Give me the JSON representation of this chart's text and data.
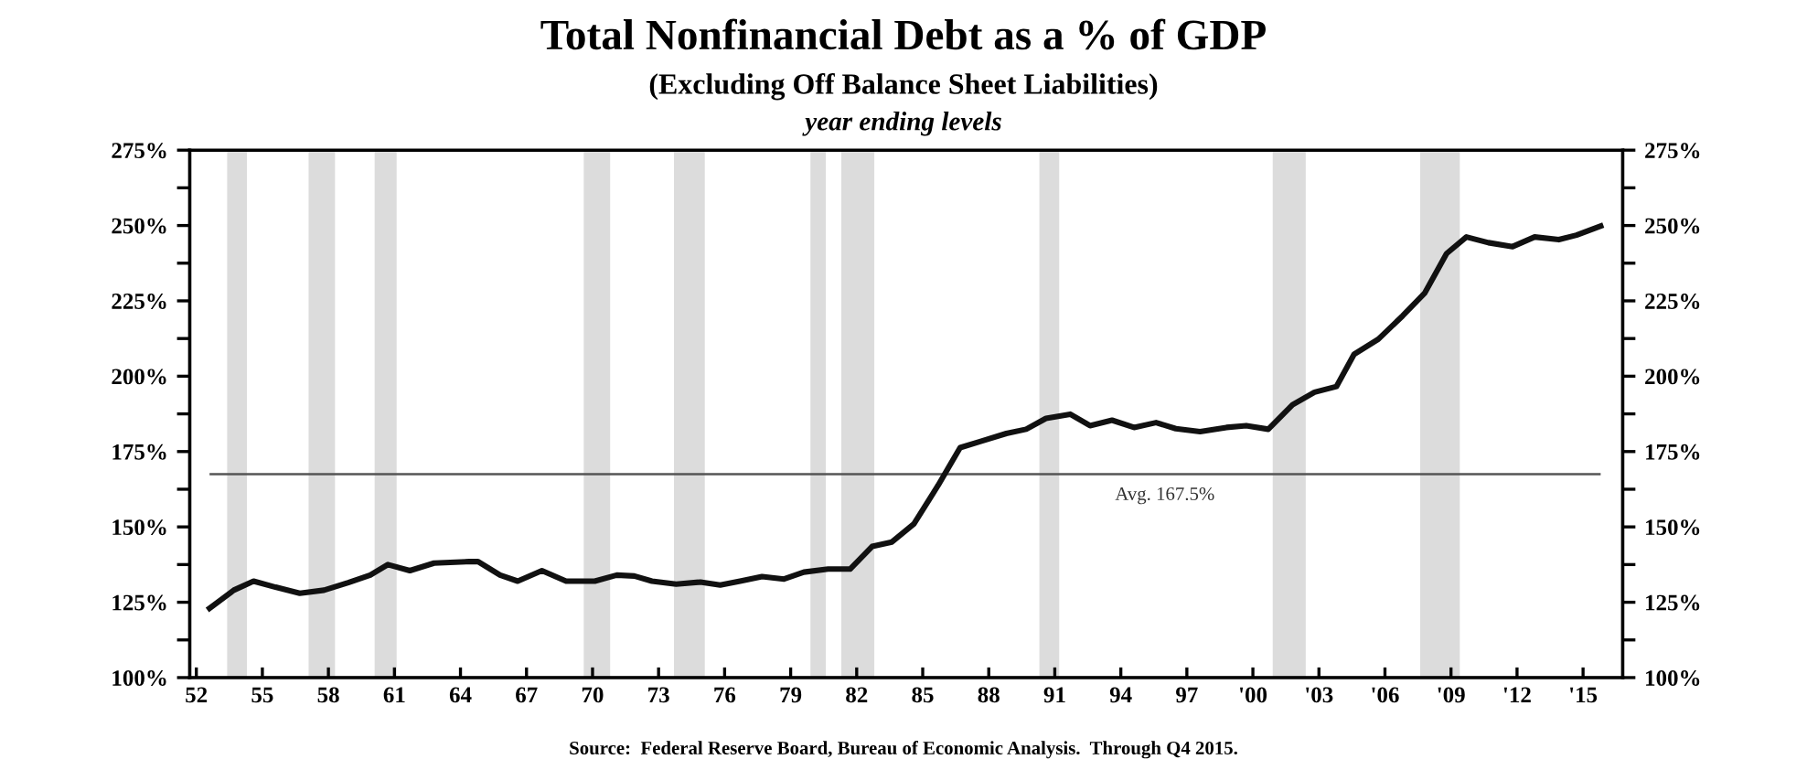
{
  "chart_data": {
    "type": "line",
    "title": "Total Nonfinancial Debt as a % of GDP",
    "subtitle": "(Excluding Off Balance Sheet Liabilities)",
    "annotations": [
      "year ending levels",
      "Source:  Federal Reserve Board, Bureau of Economic Analysis.  Through Q4 2015."
    ],
    "series": [
      {
        "color": "#111111",
        "x": [
          1952.6,
          1953.7,
          1954.6,
          1955.6,
          1956.7,
          1957.8,
          1958.9,
          1959.9,
          1960.7,
          1961.7,
          1962.8,
          1964.4,
          1964.8,
          1965.8,
          1966.6,
          1967.7,
          1968.8,
          1970.1,
          1971.1,
          1971.9,
          1972.7,
          1973.8,
          1974.9,
          1975.8,
          1976.7,
          1977.7,
          1978.7,
          1979.6,
          1980.7,
          1981.7,
          1982.7,
          1983.6,
          1984.6,
          1985.7,
          1986.7,
          1987.6,
          1988.8,
          1989.7,
          1990.6,
          1991.7,
          1992.6,
          1993.6,
          1994.6,
          1995.6,
          1996.5,
          1997.6,
          1998.8,
          1999.7,
          2000.7,
          2001.8,
          2002.8,
          2003.8,
          2004.6,
          2005.7,
          2006.8,
          2007.8,
          2008.8,
          2009.7,
          2010.7,
          2011.8,
          2012.8,
          2013.9,
          2014.7,
          2015.8
        ],
        "values": [
          123,
          129,
          132,
          130,
          128,
          129,
          131.5,
          134,
          137.5,
          135.5,
          138,
          138.5,
          138.5,
          134,
          132,
          135.5,
          132,
          132,
          134,
          133.7,
          132,
          131,
          131.7,
          130.7,
          132,
          133.5,
          132.7,
          135,
          136,
          136,
          143.5,
          145,
          151,
          163.8,
          176.3,
          178.3,
          181,
          182.4,
          186,
          187.4,
          183.6,
          185.4,
          183,
          184.6,
          182.6,
          181.6,
          183,
          183.6,
          182.4,
          190.5,
          194.7,
          196.6,
          207.3,
          212.3,
          220,
          227.5,
          240.7,
          246.2,
          244.3,
          243,
          246.2,
          245.3,
          246.8,
          249.8
        ]
      }
    ],
    "xlim": [
      1951.7,
      2016.8
    ],
    "xticks": [
      {
        "value": 1952,
        "label": "52"
      },
      {
        "value": 1955,
        "label": "55"
      },
      {
        "value": 1958,
        "label": "58"
      },
      {
        "value": 1961,
        "label": "61"
      },
      {
        "value": 1964,
        "label": "64"
      },
      {
        "value": 1967,
        "label": "67"
      },
      {
        "value": 1970,
        "label": "70"
      },
      {
        "value": 1973,
        "label": "73"
      },
      {
        "value": 1976,
        "label": "76"
      },
      {
        "value": 1979,
        "label": "79"
      },
      {
        "value": 1982,
        "label": "82"
      },
      {
        "value": 1985,
        "label": "85"
      },
      {
        "value": 1988,
        "label": "88"
      },
      {
        "value": 1991,
        "label": "91"
      },
      {
        "value": 1994,
        "label": "94"
      },
      {
        "value": 1997,
        "label": "97"
      },
      {
        "value": 2000,
        "label": "'00"
      },
      {
        "value": 2003,
        "label": "'03"
      },
      {
        "value": 2006,
        "label": "'06"
      },
      {
        "value": 2009,
        "label": "'09"
      },
      {
        "value": 2012,
        "label": "'12"
      },
      {
        "value": 2015,
        "label": "'15"
      }
    ],
    "ylim": [
      100,
      275
    ],
    "yticks": [
      {
        "value": 100,
        "label": "100%"
      },
      {
        "value": 112.5,
        "label": null
      },
      {
        "value": 125,
        "label": "125%"
      },
      {
        "value": 137.5,
        "label": null
      },
      {
        "value": 150,
        "label": "150%"
      },
      {
        "value": 162.5,
        "label": null
      },
      {
        "value": 175,
        "label": "175%"
      },
      {
        "value": 187.5,
        "label": null
      },
      {
        "value": 200,
        "label": "200%"
      },
      {
        "value": 212.5,
        "label": null
      },
      {
        "value": 225,
        "label": "225%"
      },
      {
        "value": 237.5,
        "label": null
      },
      {
        "value": 250,
        "label": "250%"
      },
      {
        "value": 262.5,
        "label": null
      },
      {
        "value": 275,
        "label": "275%"
      }
    ],
    "y2lim": [
      100,
      275
    ],
    "y2ticks": [
      {
        "value": 100,
        "label": "100%"
      },
      {
        "value": 112.5,
        "label": null
      },
      {
        "value": 125,
        "label": "125%"
      },
      {
        "value": 137.5,
        "label": null
      },
      {
        "value": 150,
        "label": "150%"
      },
      {
        "value": 162.5,
        "label": null
      },
      {
        "value": 175,
        "label": "175%"
      },
      {
        "value": 187.5,
        "label": null
      },
      {
        "value": 200,
        "label": "200%"
      },
      {
        "value": 212.5,
        "label": null
      },
      {
        "value": 225,
        "label": "225%"
      },
      {
        "value": 237.5,
        "label": null
      },
      {
        "value": 250,
        "label": "250%"
      },
      {
        "value": 262.5,
        "label": null
      },
      {
        "value": 275,
        "label": "275%"
      }
    ],
    "ref_lines": [
      {
        "axis": "y",
        "value": 167.5,
        "label": "Avg. 167.5%",
        "color": "#555555"
      }
    ],
    "bands": [
      {
        "axis": "x",
        "from": 1953.4,
        "to": 1954.3,
        "color": "#dcdcdc"
      },
      {
        "axis": "x",
        "from": 1957.1,
        "to": 1958.3,
        "color": "#dcdcdc"
      },
      {
        "axis": "x",
        "from": 1960.1,
        "to": 1961.1,
        "color": "#dcdcdc"
      },
      {
        "axis": "x",
        "from": 1969.6,
        "to": 1970.8,
        "color": "#dcdcdc"
      },
      {
        "axis": "x",
        "from": 1973.7,
        "to": 1975.1,
        "color": "#dcdcdc"
      },
      {
        "axis": "x",
        "from": 1979.9,
        "to": 1980.6,
        "color": "#dcdcdc"
      },
      {
        "axis": "x",
        "from": 1981.3,
        "to": 1982.8,
        "color": "#dcdcdc"
      },
      {
        "axis": "x",
        "from": 1990.3,
        "to": 1991.2,
        "color": "#dcdcdc"
      },
      {
        "axis": "x",
        "from": 2000.9,
        "to": 2002.4,
        "color": "#dcdcdc"
      },
      {
        "axis": "x",
        "from": 2007.6,
        "to": 2009.4,
        "color": "#dcdcdc"
      }
    ],
    "grid": false,
    "legend": false,
    "line_style": "solid"
  }
}
